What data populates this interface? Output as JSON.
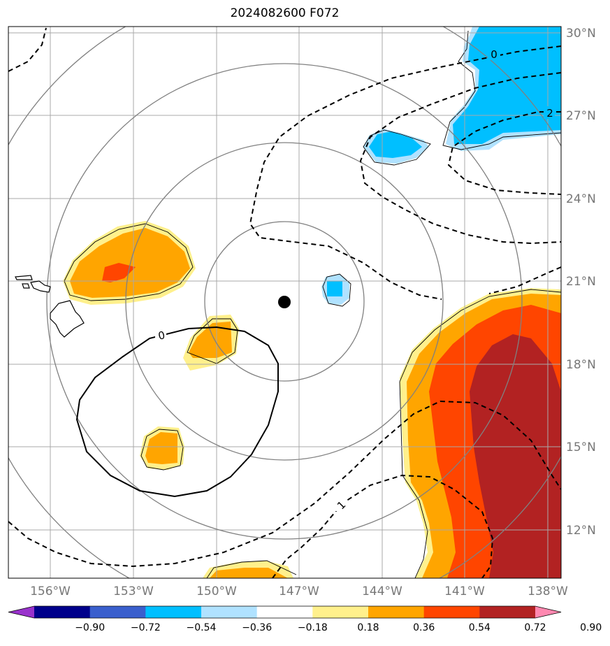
{
  "title": "2024082600 F072",
  "map": {
    "lon_ticks": [
      "156°W",
      "153°W",
      "150°W",
      "147°W",
      "144°W",
      "141°W",
      "138°W"
    ],
    "lat_ticks": [
      "30°N",
      "27°N",
      "24°N",
      "21°N",
      "18°N",
      "15°N",
      "12°N"
    ],
    "lon_range": [
      -157.5,
      -137.5
    ],
    "lat_range": [
      10.0,
      30.25
    ],
    "storm_center": {
      "lon": -147.0,
      "lat": 20.2
    },
    "contour_labels": [
      "0",
      "2",
      "0",
      "1"
    ],
    "colorbar": {
      "levels": [
        "−0.90",
        "−0.72",
        "−0.54",
        "−0.36",
        "−0.18",
        "0.18",
        "0.36",
        "0.54",
        "0.72",
        "0.90"
      ],
      "colors": [
        "#9932cc",
        "#00008b",
        "#3a5fcd",
        "#00bfff",
        "#b0e2ff",
        "#ffffff",
        "#fff08c",
        "#ffa500",
        "#ff4500",
        "#b22222",
        "#ff88b0"
      ]
    }
  }
}
